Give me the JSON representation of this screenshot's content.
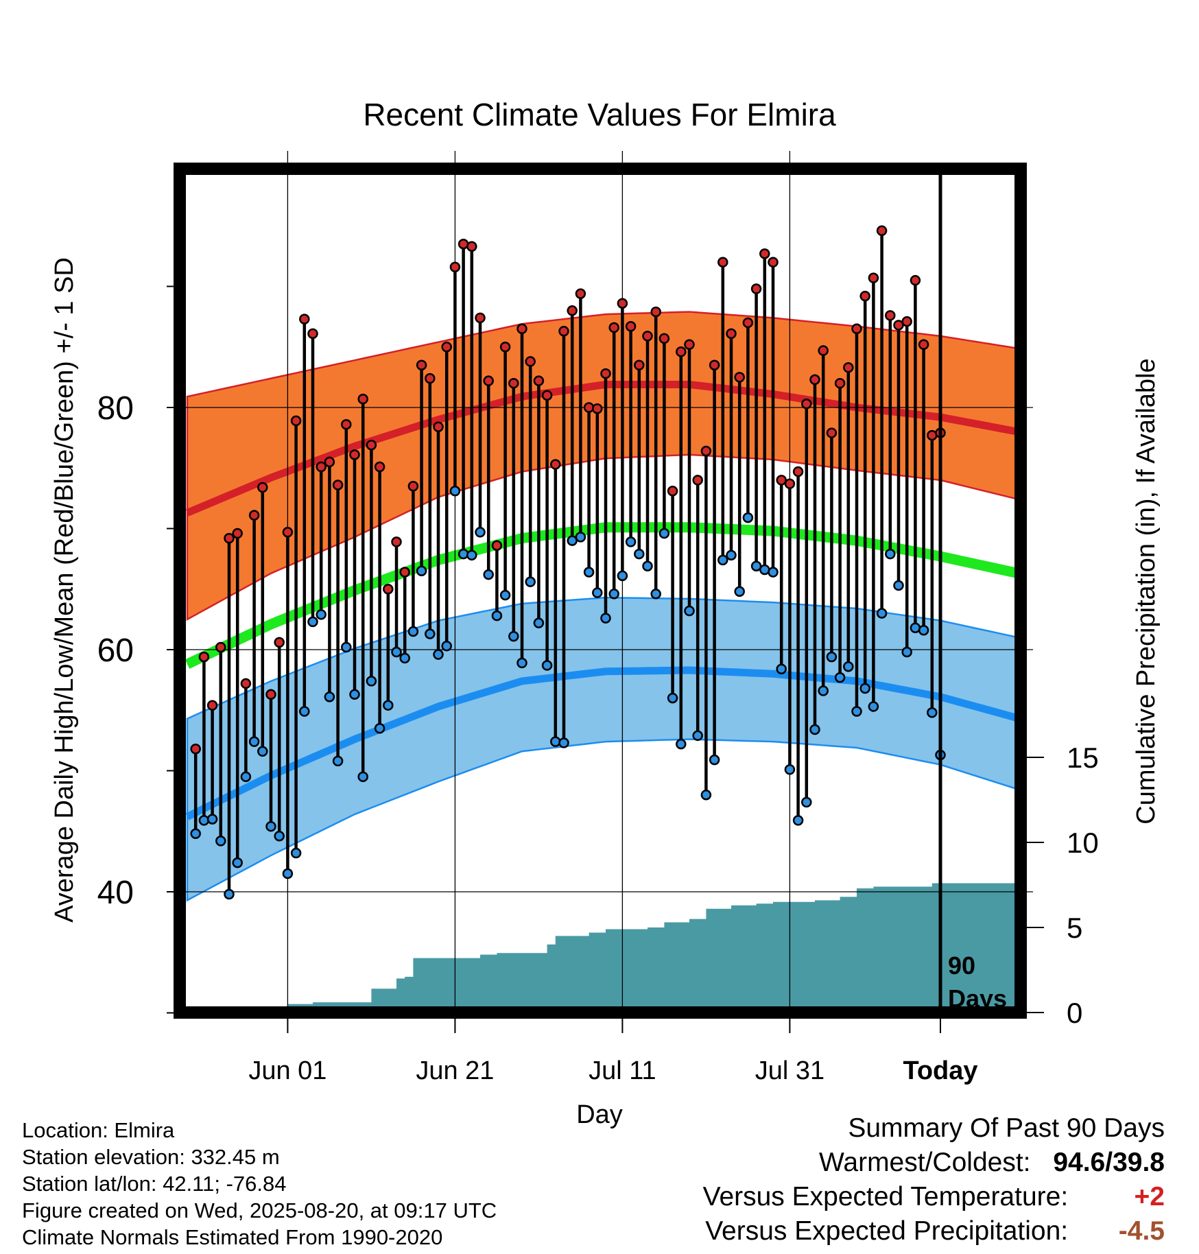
{
  "chart_data": {
    "type": "line",
    "title": "Recent Climate Values For Elmira",
    "xlabel": "Day",
    "ylabel": "Average Daily High/Low/Mean (Red/Blue/Green) +/- 1 SD",
    "y2label": "Cumulative Precipitation (in), If Available",
    "x_tick_labels": [
      "Jun 01",
      "Jun 21",
      "Jul 11",
      "Jul 31",
      "Today"
    ],
    "y_ticks": [
      "40",
      "60",
      "80"
    ],
    "y2_ticks": [
      "0",
      "5",
      "10",
      "15"
    ],
    "ylim": [
      30,
      100
    ],
    "y2lim": [
      0,
      35
    ],
    "day_range": [
      -90,
      10
    ],
    "today_label": "90 Days",
    "colors": {
      "high_band": "#f47930",
      "high_line": "#d42028",
      "low_band": "#85c3ea",
      "low_line": "#1c8df0",
      "mean_line": "#1ee81e",
      "precip_fill": "#4a9aa4",
      "dot_high": "#d12a2a",
      "dot_low": "#2f8fe0"
    },
    "normals": {
      "days": [
        -90,
        -80,
        -70,
        -60,
        -50,
        -40,
        -30,
        -20,
        -10,
        0,
        10
      ],
      "high_mean": [
        71.3,
        74.2,
        76.8,
        79.0,
        80.9,
        81.9,
        81.9,
        81.1,
        80.0,
        79.2,
        77.9
      ],
      "high_upper": [
        80.9,
        82.4,
        83.9,
        85.4,
        86.9,
        87.7,
        87.9,
        87.4,
        86.7,
        85.9,
        84.8
      ],
      "high_lower": [
        62.5,
        66.3,
        69.3,
        72.6,
        74.7,
        75.8,
        76.1,
        75.7,
        74.8,
        74.0,
        72.3
      ],
      "low_mean": [
        46.2,
        49.6,
        52.6,
        55.3,
        57.4,
        58.2,
        58.3,
        58.0,
        57.4,
        56.1,
        54.2
      ],
      "low_upper": [
        54.3,
        57.4,
        60.1,
        62.4,
        63.8,
        64.3,
        64.2,
        63.9,
        63.4,
        62.4,
        60.9
      ],
      "low_lower": [
        39.3,
        43.0,
        46.4,
        49.1,
        51.6,
        52.4,
        52.6,
        52.4,
        51.9,
        50.5,
        48.3
      ],
      "mean": [
        58.8,
        62.1,
        64.9,
        67.4,
        69.2,
        70.1,
        70.1,
        69.8,
        69.0,
        67.7,
        66.2
      ]
    },
    "series": [
      {
        "name": "High",
        "values": [
          51.8,
          59.4,
          55.4,
          60.2,
          69.2,
          69.6,
          57.2,
          71.1,
          73.4,
          56.3,
          60.6,
          69.7,
          78.9,
          87.3,
          86.1,
          75.1,
          75.5,
          73.6,
          78.6,
          76.1,
          80.7,
          76.9,
          75.1,
          65.0,
          68.9,
          66.4,
          73.5,
          83.5,
          82.4,
          78.4,
          85.0,
          91.6,
          93.5,
          93.3,
          87.4,
          82.2,
          68.6,
          85.0,
          82.0,
          86.5,
          83.8,
          82.2,
          81.0,
          75.3,
          86.3,
          88.0,
          89.4,
          80.0,
          79.9,
          82.8,
          86.6,
          88.6,
          86.7,
          83.5,
          85.9,
          87.9,
          85.7,
          73.1,
          84.6,
          85.2,
          74.0,
          76.4,
          83.5,
          92.0,
          86.1,
          82.5,
          87.0,
          89.8,
          92.7,
          92.0,
          74.0,
          73.7,
          74.7,
          80.3,
          82.3,
          84.7,
          77.9,
          82.0,
          83.3,
          86.5,
          89.2,
          90.7,
          94.6,
          87.6,
          86.8,
          87.1,
          90.5,
          85.2,
          77.7,
          77.9
        ]
      },
      {
        "name": "Low",
        "values": [
          44.8,
          45.9,
          46.0,
          44.2,
          39.8,
          42.4,
          49.5,
          52.4,
          51.6,
          45.4,
          44.6,
          41.5,
          43.2,
          54.9,
          62.3,
          62.9,
          56.1,
          50.8,
          60.2,
          56.3,
          49.5,
          57.4,
          53.5,
          55.4,
          59.8,
          59.3,
          61.5,
          66.5,
          61.3,
          59.6,
          60.3,
          73.1,
          67.9,
          67.8,
          69.7,
          66.2,
          62.8,
          64.5,
          61.1,
          58.9,
          65.6,
          62.2,
          58.7,
          52.4,
          52.3,
          69.0,
          69.3,
          66.4,
          64.7,
          62.6,
          64.6,
          66.1,
          68.9,
          67.9,
          66.9,
          64.6,
          69.6,
          56.0,
          52.2,
          63.2,
          52.9,
          48.0,
          50.9,
          67.4,
          67.8,
          64.8,
          70.9,
          66.9,
          66.6,
          66.4,
          58.4,
          50.1,
          45.9,
          47.4,
          53.4,
          56.6,
          59.4,
          57.7,
          58.6,
          54.9,
          56.8,
          55.3,
          63.0,
          67.9,
          65.3,
          59.8,
          61.8,
          61.6,
          54.8,
          51.3
        ]
      },
      {
        "name": "Cumulative Precipitation",
        "points": [
          [
            -90,
            0
          ],
          [
            -85,
            0.2
          ],
          [
            -80,
            0.3
          ],
          [
            -78,
            0.5
          ],
          [
            -75,
            0.6
          ],
          [
            -70,
            0.6
          ],
          [
            -68,
            1.4
          ],
          [
            -65,
            2.0
          ],
          [
            -64,
            2.1
          ],
          [
            -63,
            3.2
          ],
          [
            -55,
            3.4
          ],
          [
            -53,
            3.5
          ],
          [
            -48,
            3.5
          ],
          [
            -47,
            4.0
          ],
          [
            -46,
            4.5
          ],
          [
            -42,
            4.7
          ],
          [
            -40,
            4.9
          ],
          [
            -35,
            5.0
          ],
          [
            -33,
            5.3
          ],
          [
            -30,
            5.5
          ],
          [
            -28,
            6.1
          ],
          [
            -25,
            6.3
          ],
          [
            -22,
            6.4
          ],
          [
            -20,
            6.5
          ],
          [
            -15,
            6.6
          ],
          [
            -12,
            6.8
          ],
          [
            -10,
            7.3
          ],
          [
            -8,
            7.4
          ],
          [
            -5,
            7.4
          ],
          [
            -1,
            7.6
          ],
          [
            0,
            7.6
          ],
          [
            9,
            7.6
          ]
        ]
      }
    ],
    "grid": true,
    "legend": "none"
  },
  "footer": {
    "location": "Location: Elmira",
    "elevation": "Station elevation: 332.45 m",
    "latlon": "Station lat/lon: 42.11; -76.84",
    "created": "Figure created on Wed, 2025-08-20, at 09:17 UTC",
    "normals": "Climate Normals Estimated From 1990-2020"
  },
  "summary": {
    "title": "Summary Of Past 90 Days",
    "warmest_label": "Warmest/Coldest:",
    "warmest_value": "94.6/39.8",
    "temp_label": "Versus Expected Temperature:",
    "temp_value": "+2",
    "temp_color": "#d42020",
    "precip_label": "Versus Expected Precipitation:",
    "precip_value": "-4.5",
    "precip_color": "#a0522d"
  }
}
